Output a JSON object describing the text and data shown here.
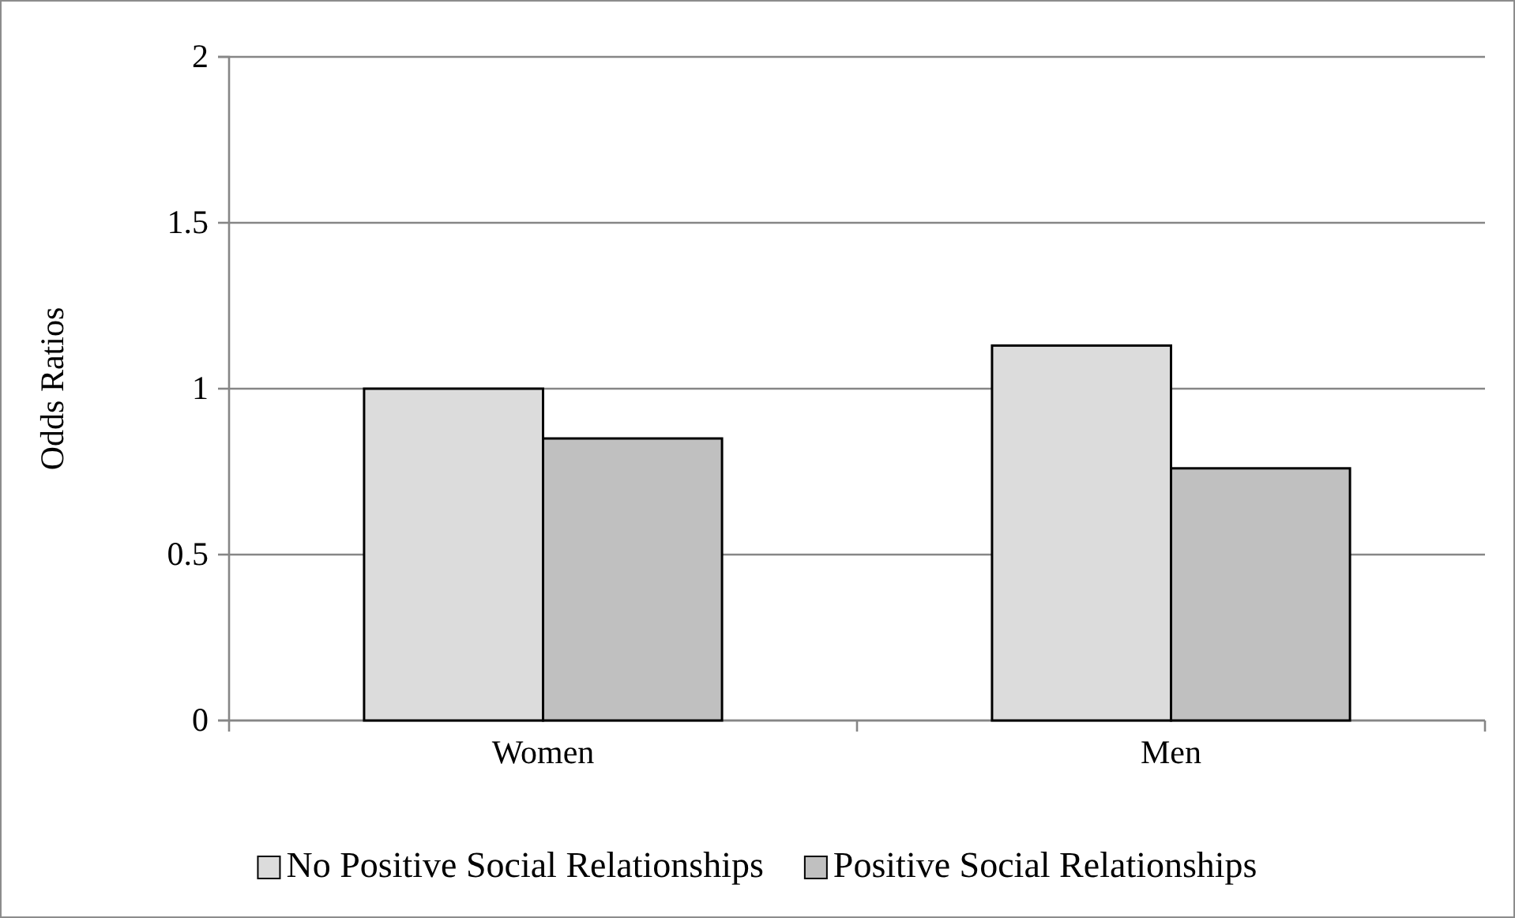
{
  "chart_data": {
    "type": "bar",
    "ylabel": "Odds Ratios",
    "categories": [
      "Women",
      "Men"
    ],
    "series": [
      {
        "name": "No Positive Social Relationships",
        "color": "#dcdcdc",
        "values": [
          1.0,
          1.13
        ]
      },
      {
        "name": "Positive Social Relationships",
        "color": "#c0c0c0",
        "values": [
          0.85,
          0.76
        ]
      }
    ],
    "ylim": [
      0,
      2
    ],
    "yticks": [
      0,
      0.5,
      1,
      1.5,
      2
    ],
    "grid": "y",
    "legend": "bottom"
  }
}
